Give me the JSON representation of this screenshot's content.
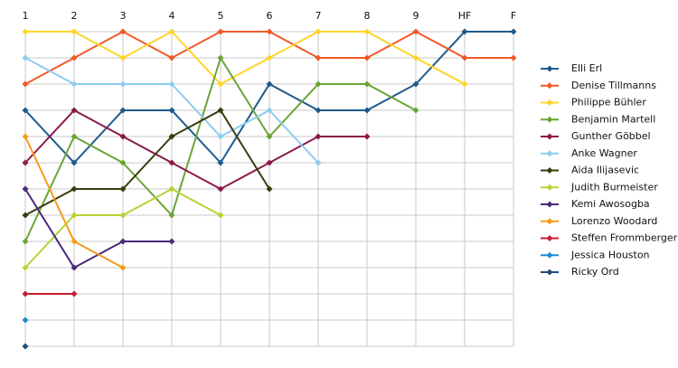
{
  "chart_data": {
    "type": "line",
    "categories": [
      "1",
      "2",
      "3",
      "4",
      "5",
      "6",
      "7",
      "8",
      "9",
      "HF",
      "F"
    ],
    "ylim": [
      13,
      1
    ],
    "yticks": [
      1,
      2,
      3,
      4,
      5,
      6,
      7,
      8,
      9,
      10,
      11,
      12,
      13
    ],
    "y_reversed": true,
    "grid": true,
    "legend": "right",
    "series": [
      {
        "name": "Elli Erl",
        "color": "#1f5a8c",
        "values": [
          4,
          6,
          4,
          4,
          6,
          3,
          4,
          4,
          3,
          1,
          1
        ]
      },
      {
        "name": "Denise Tillmanns",
        "color": "#f05a28",
        "values": [
          3,
          2,
          1,
          2,
          1,
          1,
          2,
          2,
          1,
          2,
          2
        ]
      },
      {
        "name": "Philippe Bühler",
        "color": "#ffd42a",
        "values": [
          1,
          1,
          2,
          1,
          3,
          2,
          1,
          1,
          2,
          3,
          null
        ]
      },
      {
        "name": "Benjamin Martell",
        "color": "#6aa536",
        "values": [
          9,
          5,
          6,
          8,
          2,
          5,
          3,
          3,
          4,
          null,
          null
        ]
      },
      {
        "name": "Gunther Göbbel",
        "color": "#8b1a4a",
        "values": [
          6,
          4,
          5,
          6,
          7,
          6,
          5,
          5,
          null,
          null,
          null
        ]
      },
      {
        "name": "Anke Wagner",
        "color": "#8ecbf0",
        "values": [
          2,
          3,
          3,
          3,
          5,
          4,
          6,
          null,
          null,
          null,
          null
        ]
      },
      {
        "name": "Aida Ilijasevic",
        "color": "#3b3b0e",
        "values": [
          8,
          7,
          7,
          5,
          4,
          7,
          null,
          null,
          null,
          null,
          null
        ]
      },
      {
        "name": "Judith Burmeister",
        "color": "#b5d334",
        "values": [
          10,
          8,
          8,
          7,
          8,
          null,
          null,
          null,
          null,
          null,
          null
        ]
      },
      {
        "name": "Kemi Awosogba",
        "color": "#4b2a7a",
        "values": [
          7,
          10,
          9,
          9,
          null,
          null,
          null,
          null,
          null,
          null,
          null
        ]
      },
      {
        "name": "Lorenzo Woodard",
        "color": "#f59b1a",
        "values": [
          5,
          9,
          10,
          null,
          null,
          null,
          null,
          null,
          null,
          null,
          null
        ]
      },
      {
        "name": "Steffen Frommberger",
        "color": "#c81e32",
        "values": [
          11,
          11,
          null,
          null,
          null,
          null,
          null,
          null,
          null,
          null,
          null
        ]
      },
      {
        "name": "Jessica Houston",
        "color": "#1f8ccc",
        "values": [
          12,
          null,
          null,
          null,
          null,
          null,
          null,
          null,
          null,
          null,
          null
        ]
      },
      {
        "name": "Ricky Ord",
        "color": "#1f4e79",
        "values": [
          13,
          null,
          null,
          null,
          null,
          null,
          null,
          null,
          null,
          null,
          null
        ]
      }
    ]
  }
}
